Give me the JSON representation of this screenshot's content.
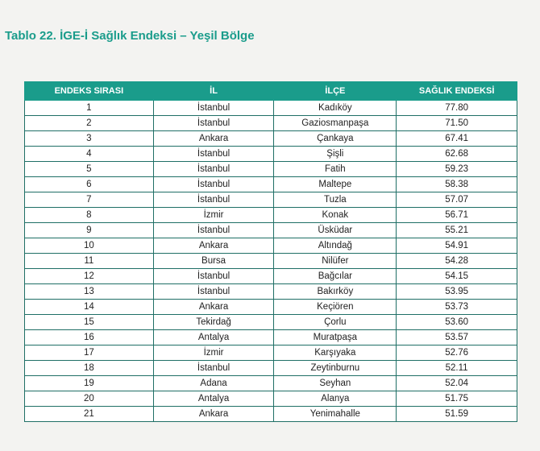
{
  "header": {
    "title": "Tablo 22. İGE-İ Sağlık Endeksi – Yeşil Bölge"
  },
  "table": {
    "columns": [
      "ENDEKS SIRASI",
      "İL",
      "İLÇE",
      "SAĞLIK ENDEKSİ"
    ],
    "rows": [
      [
        "1",
        "İstanbul",
        "Kadıköy",
        "77.80"
      ],
      [
        "2",
        "İstanbul",
        "Gaziosmanpaşa",
        "71.50"
      ],
      [
        "3",
        "Ankara",
        "Çankaya",
        "67.41"
      ],
      [
        "4",
        "İstanbul",
        "Şişli",
        "62.68"
      ],
      [
        "5",
        "İstanbul",
        "Fatih",
        "59.23"
      ],
      [
        "6",
        "İstanbul",
        "Maltepe",
        "58.38"
      ],
      [
        "7",
        "İstanbul",
        "Tuzla",
        "57.07"
      ],
      [
        "8",
        "İzmir",
        "Konak",
        "56.71"
      ],
      [
        "9",
        "İstanbul",
        "Üsküdar",
        "55.21"
      ],
      [
        "10",
        "Ankara",
        "Altındağ",
        "54.91"
      ],
      [
        "11",
        "Bursa",
        "Nilüfer",
        "54.28"
      ],
      [
        "12",
        "İstanbul",
        "Bağcılar",
        "54.15"
      ],
      [
        "13",
        "İstanbul",
        "Bakırköy",
        "53.95"
      ],
      [
        "14",
        "Ankara",
        "Keçiören",
        "53.73"
      ],
      [
        "15",
        "Tekirdağ",
        "Çorlu",
        "53.60"
      ],
      [
        "16",
        "Antalya",
        "Muratpaşa",
        "53.57"
      ],
      [
        "17",
        "İzmir",
        "Karşıyaka",
        "52.76"
      ],
      [
        "18",
        "İstanbul",
        "Zeytinburnu",
        "52.11"
      ],
      [
        "19",
        "Adana",
        "Seyhan",
        "52.04"
      ],
      [
        "20",
        "Antalya",
        "Alanya",
        "51.75"
      ],
      [
        "21",
        "Ankara",
        "Yenimahalle",
        "51.59"
      ]
    ]
  }
}
